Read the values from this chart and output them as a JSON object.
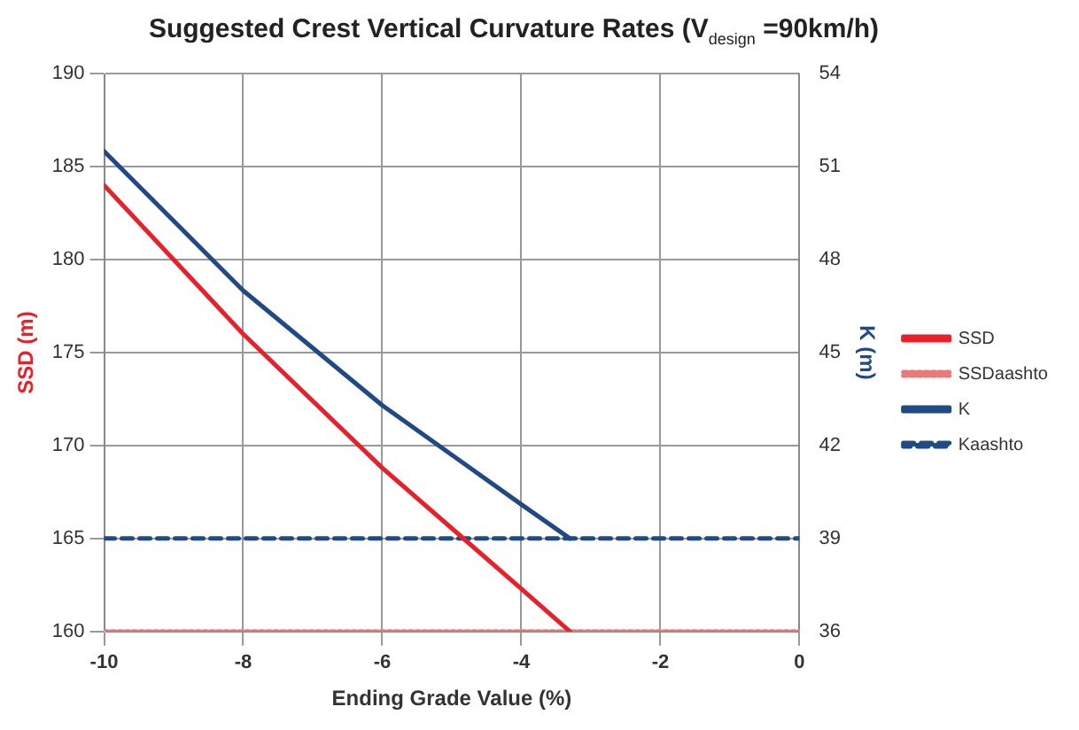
{
  "chart_data": {
    "type": "line",
    "title": "Suggested Crest Vertical Curvature Rates (V$_{design}$ =90km/h)",
    "xlabel": "Ending Grade Value (%)",
    "ylabel": "SSD (m)",
    "y2label": "K (m)",
    "xlim": [
      -10,
      0
    ],
    "xticks": [
      -10,
      -8,
      -6,
      -4,
      -2,
      0
    ],
    "ylim": [
      160,
      190
    ],
    "yticks": [
      160,
      165,
      170,
      175,
      180,
      185,
      190
    ],
    "y2lim": [
      36,
      54
    ],
    "y2ticks": [
      36,
      39,
      42,
      45,
      48,
      51,
      54
    ],
    "grid": true,
    "legend": "right",
    "marker": "none",
    "series": [
      {
        "name": "SSD",
        "color": "#e8202a",
        "line_style": "solid",
        "x": [
          -10,
          -8,
          -6,
          -4,
          -3.3
        ],
        "values": [
          184,
          176,
          168.8,
          162.3,
          160
        ]
      },
      {
        "name": "SSDaashto",
        "color": "#e87a7a",
        "line_style": "dotted",
        "x": [
          -10,
          0
        ],
        "values": [
          160,
          160
        ]
      },
      {
        "name": "K",
        "color": "#1f4a86",
        "line_style": "solid",
        "axis": "y2",
        "x": [
          -10,
          -8,
          -6,
          -4,
          -3.3
        ],
        "values": [
          51.5,
          47,
          43.3,
          40.1,
          39
        ]
      },
      {
        "name": "Kaashto",
        "color": "#1f4a86",
        "line_style": "dashed",
        "axis": "y2",
        "x": [
          -10,
          0
        ],
        "values": [
          39,
          39
        ]
      }
    ]
  }
}
